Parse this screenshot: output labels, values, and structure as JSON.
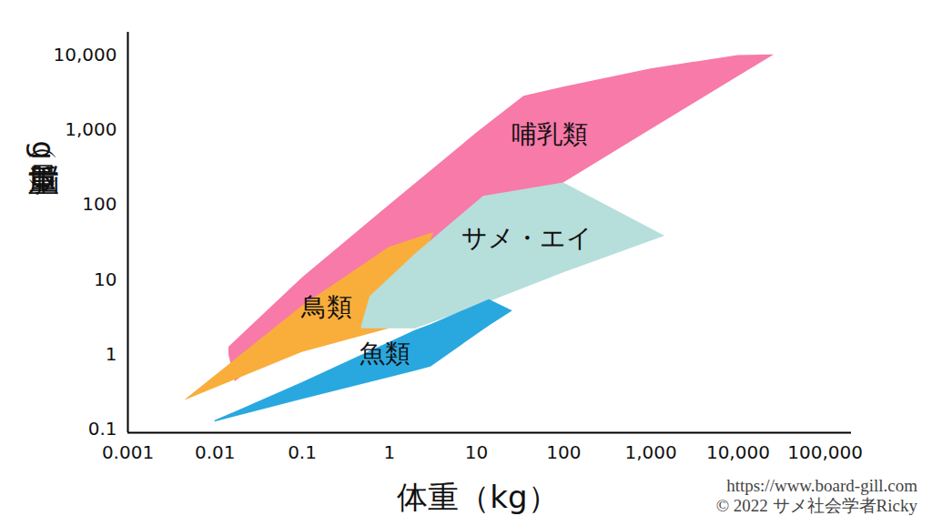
{
  "chart_data": {
    "type": "area",
    "x_label": "体重（kg）",
    "y_label": "脳重量（g）",
    "log": true,
    "xlim": [
      0.001,
      200000
    ],
    "ylim": [
      0.09,
      20000
    ],
    "xticks": [
      0.001,
      0.01,
      0.1,
      1,
      10,
      100,
      {
        "value": 1000,
        "label": "1,000"
      },
      {
        "value": 10000,
        "label": "10,000"
      },
      {
        "value": 100000,
        "label": "100,000"
      }
    ],
    "yticks": [
      0.1,
      1,
      10,
      100,
      {
        "value": 1000,
        "label": "1,000"
      },
      {
        "value": 10000,
        "label": "10,000"
      }
    ],
    "series": [
      {
        "name": "哺乳類",
        "color": "#f77aa8",
        "x": [
          0.0144,
          0.017,
          0.1,
          1,
          10,
          35,
          100,
          1000,
          10000,
          26000
        ],
        "upper": [
          1.25,
          1.5,
          10.5,
          98,
          900,
          2800,
          3700,
          6500,
          9800,
          10000
        ],
        "lower": [
          1.0,
          0.43,
          2.1,
          12.6,
          58,
          110,
          195,
          1000,
          5100,
          10000
        ],
        "label_at": [
          69,
          870
        ]
      },
      {
        "name": "鳥類",
        "color": "#f9ae3c",
        "x": [
          0.0046,
          0.1,
          1,
          3.2
        ],
        "upper": [
          0.25,
          4.4,
          27,
          42
        ],
        "lower": [
          0.245,
          1.06,
          2.2,
          40
        ],
        "label_at": [
          0.19,
          4.2
        ]
      },
      {
        "name": "サメ・エイ",
        "color": "#b6dedb",
        "x": [
          0.48,
          0.6,
          2,
          12,
          100,
          1450
        ],
        "upper": [
          2.4,
          5.9,
          22,
          129,
          195,
          38
        ],
        "lower": [
          2.2,
          2.2,
          2.2,
          4.7,
          12.3,
          38
        ],
        "label_at": [
          38,
          35
        ]
      },
      {
        "name": "魚類",
        "color": "#29a8e0",
        "x": [
          0.01,
          0.1,
          2,
          3,
          14,
          26
        ],
        "upper": [
          0.13,
          0.42,
          2.1,
          2.5,
          5.4,
          3.8
        ],
        "lower": [
          0.125,
          0.25,
          0.6,
          0.68,
          2.4,
          3.8
        ],
        "label_at": [
          0.89,
          1.0
        ]
      }
    ],
    "caption": [
      "https://www.board-gill.com",
      "© 2022 サメ社会学者Ricky"
    ]
  }
}
